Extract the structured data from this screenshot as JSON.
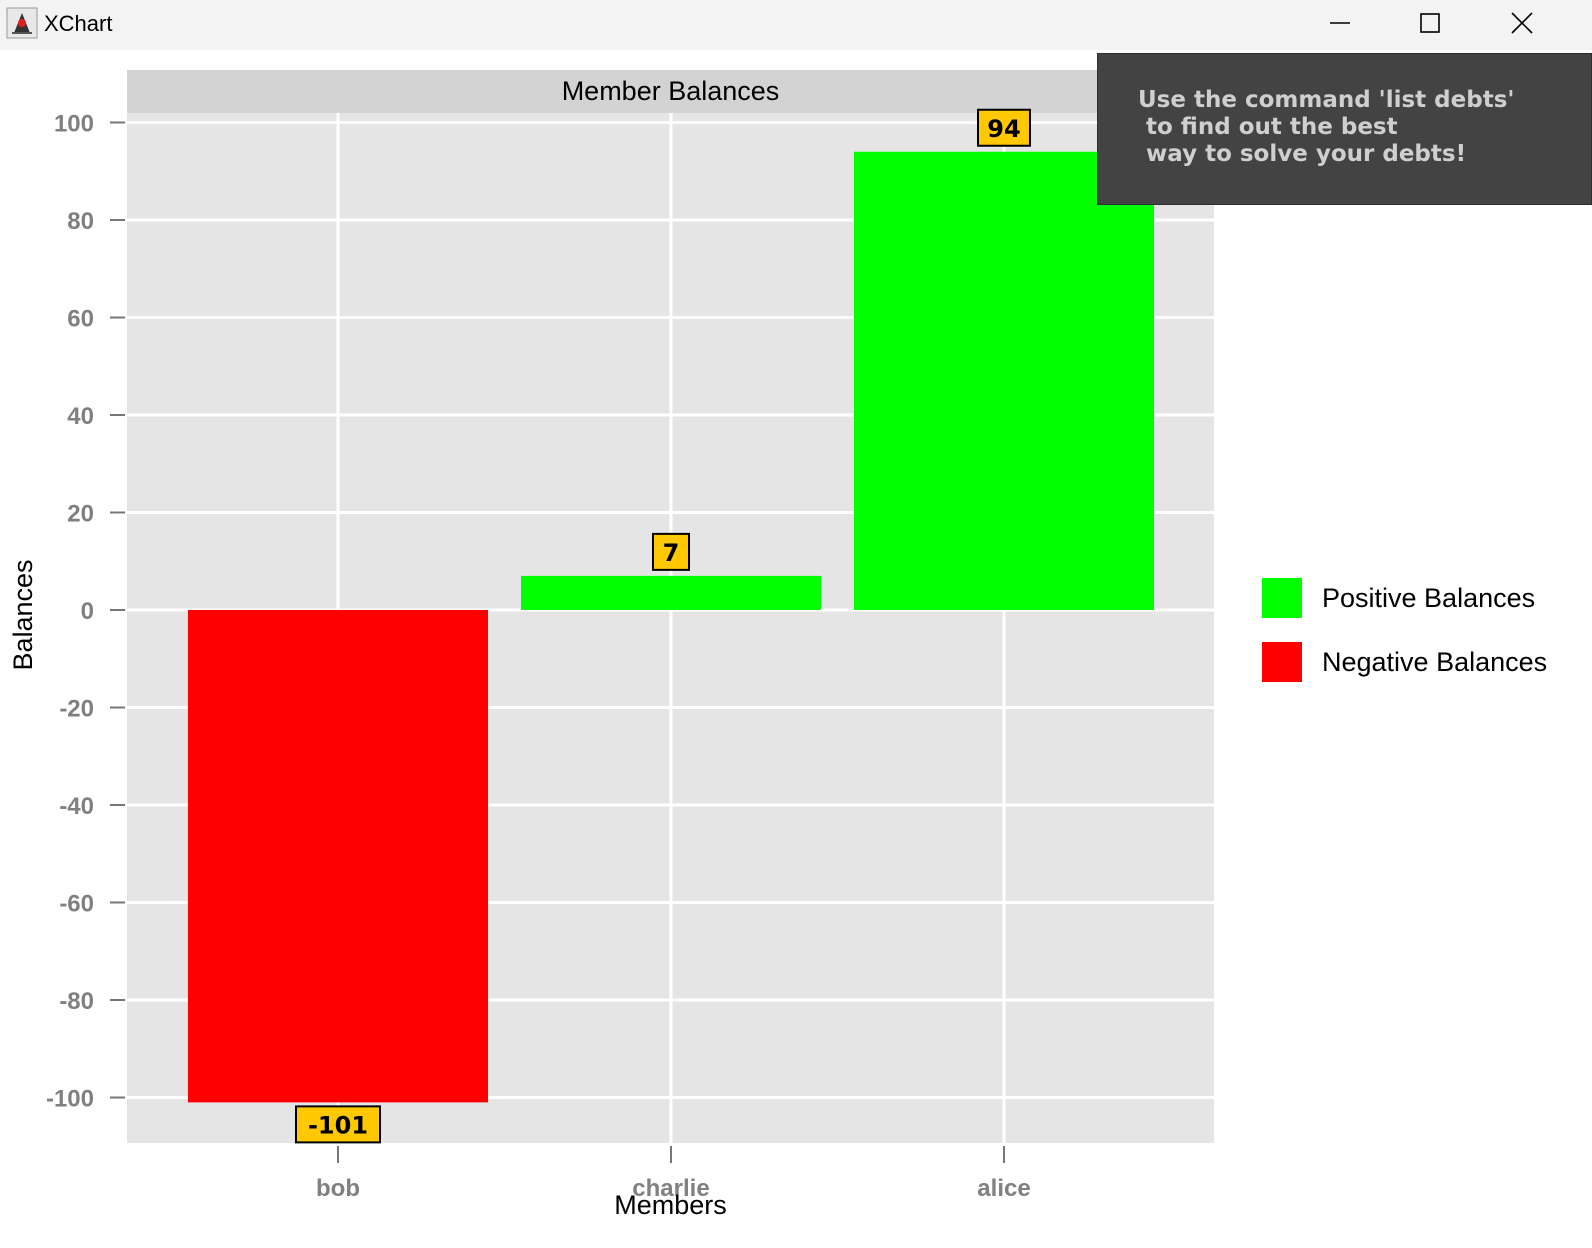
{
  "window": {
    "title": "XChart",
    "icons": {
      "app": "java-duke-icon",
      "minimize": "minimize-icon",
      "maximize": "maximize-icon",
      "close": "close-icon"
    }
  },
  "tooltip": {
    "text": "Use the command 'list debts'\n to find out the best\n way to solve your debts!"
  },
  "chart_data": {
    "type": "bar",
    "title": "Member Balances",
    "xlabel": "Members",
    "ylabel": "Balances",
    "categories": [
      "bob",
      "charlie",
      "alice"
    ],
    "ylim": [
      -110,
      110
    ],
    "yticks": [
      100,
      80,
      60,
      40,
      20,
      0,
      -20,
      -40,
      -60,
      -80,
      -100
    ],
    "grid": true,
    "legend_position": "right",
    "series": [
      {
        "name": "Positive Balances",
        "color": "#00ff00",
        "values": [
          null,
          7,
          94
        ]
      },
      {
        "name": "Negative Balances",
        "color": "#ff0000",
        "values": [
          -101,
          null,
          null
        ]
      }
    ],
    "data_labels": [
      "-101",
      "7",
      "94"
    ],
    "colors": {
      "plot_background": "#e5e5e5",
      "grid": "#ffffff",
      "title_box": "#d3d3d3",
      "label_box": "#ffc800",
      "tick_text": "#808080"
    }
  }
}
